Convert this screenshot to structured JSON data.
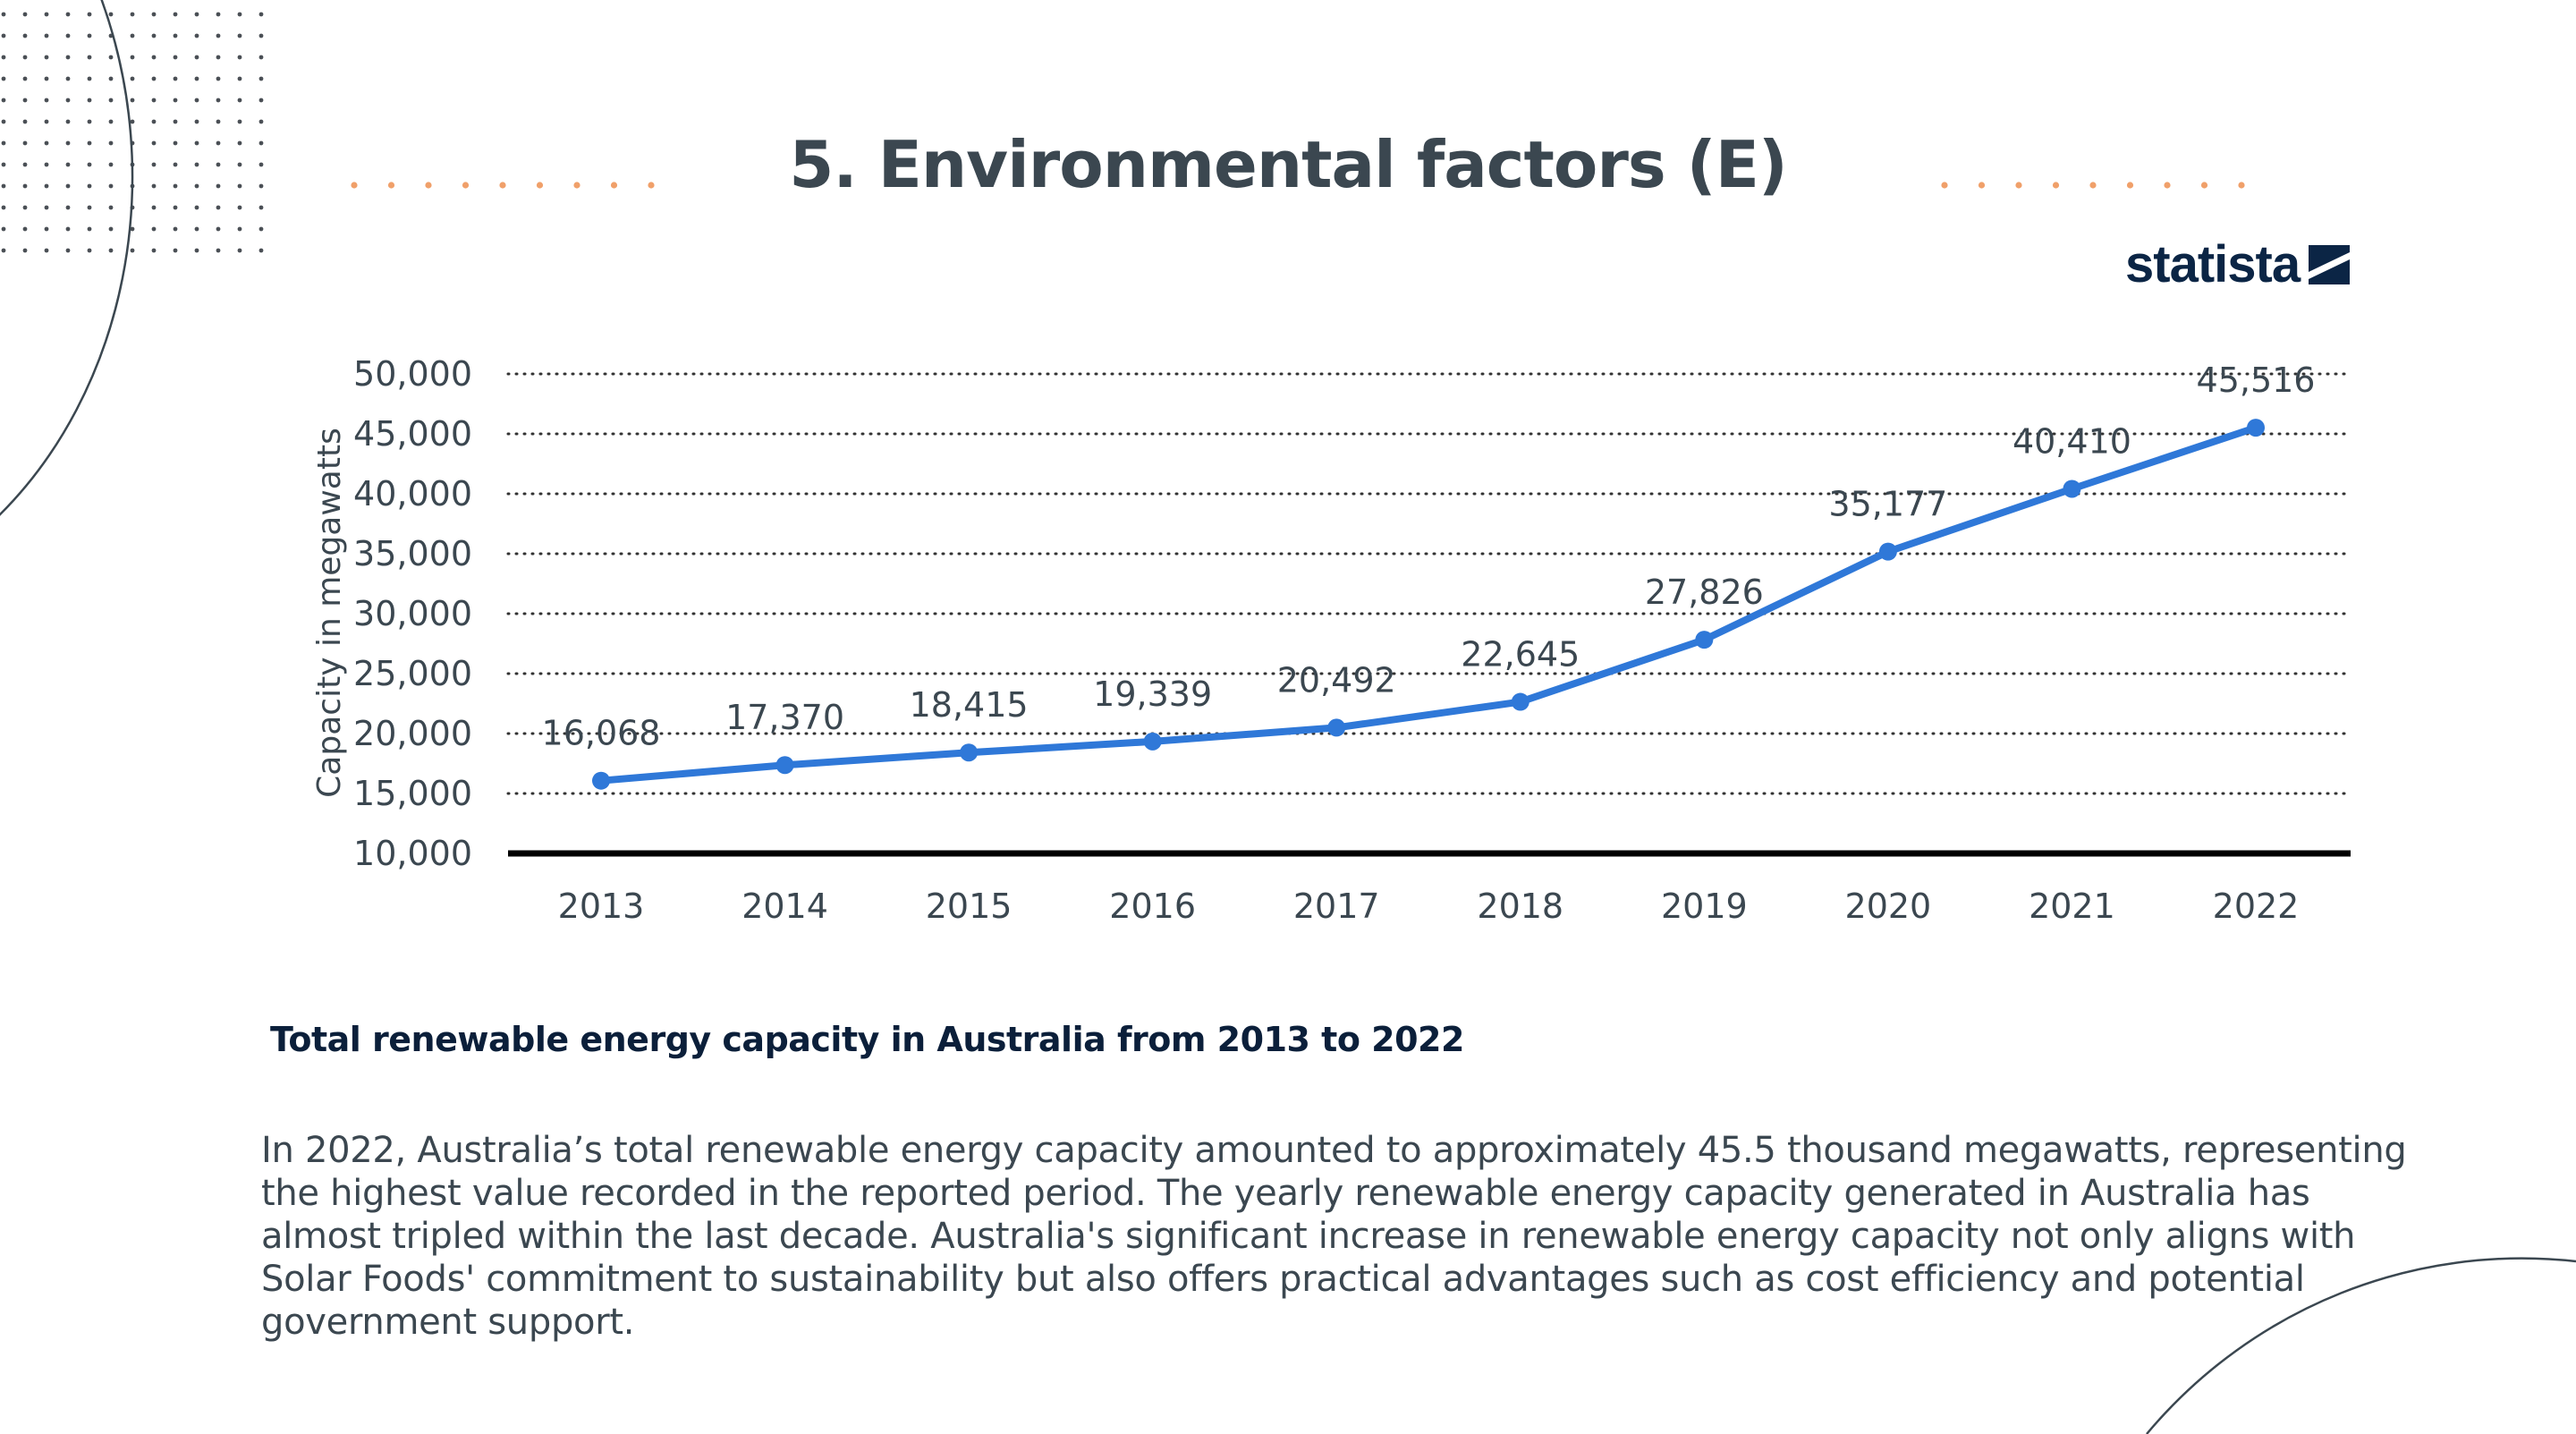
{
  "slide": {
    "title": "5. Environmental factors (E)",
    "brand": "statista",
    "caption": "Total renewable energy capacity in Australia from 2013 to 2022",
    "description": " In 2022, Australia’s total renewable energy capacity amounted to approximately 45.5 thousand megawatts, representing\nthe highest value recorded in the reported period. The yearly renewable energy capacity generated in Australia has\nalmost tripled within the last decade. Australia's significant increase in renewable energy capacity not only aligns with\nSolar Foods' commitment to sustainability but also offers practical advantages such as cost efficiency and potential\ngovernment support."
  },
  "colors": {
    "line": "#2f78d8",
    "title": "#3b4750",
    "accent_dots": "#f0a06a",
    "brand": "#0b2545"
  },
  "chart_data": {
    "type": "line",
    "x": [
      "2013",
      "2014",
      "2015",
      "2016",
      "2017",
      "2018",
      "2019",
      "2020",
      "2021",
      "2022"
    ],
    "series": [
      {
        "values": [
          16068,
          17370,
          18415,
          19339,
          20492,
          22645,
          27826,
          35177,
          40410,
          45516
        ]
      }
    ],
    "data_labels": [
      "16,068",
      "17,370",
      "18,415",
      "19,339",
      "20,492",
      "22,645",
      "27,826",
      "35,177",
      "40,410",
      "45,516"
    ],
    "ylabel": "Capacity in megawatts",
    "xlabel": "",
    "ylim": [
      10000,
      50000
    ],
    "yticks": [
      10000,
      15000,
      20000,
      25000,
      30000,
      35000,
      40000,
      45000,
      50000
    ],
    "ytick_labels": [
      "10,000",
      "15,000",
      "20,000",
      "25,000",
      "30,000",
      "35,000",
      "40,000",
      "45,000",
      "50,000"
    ],
    "grid": "dotted horizontal",
    "legend": "none"
  }
}
